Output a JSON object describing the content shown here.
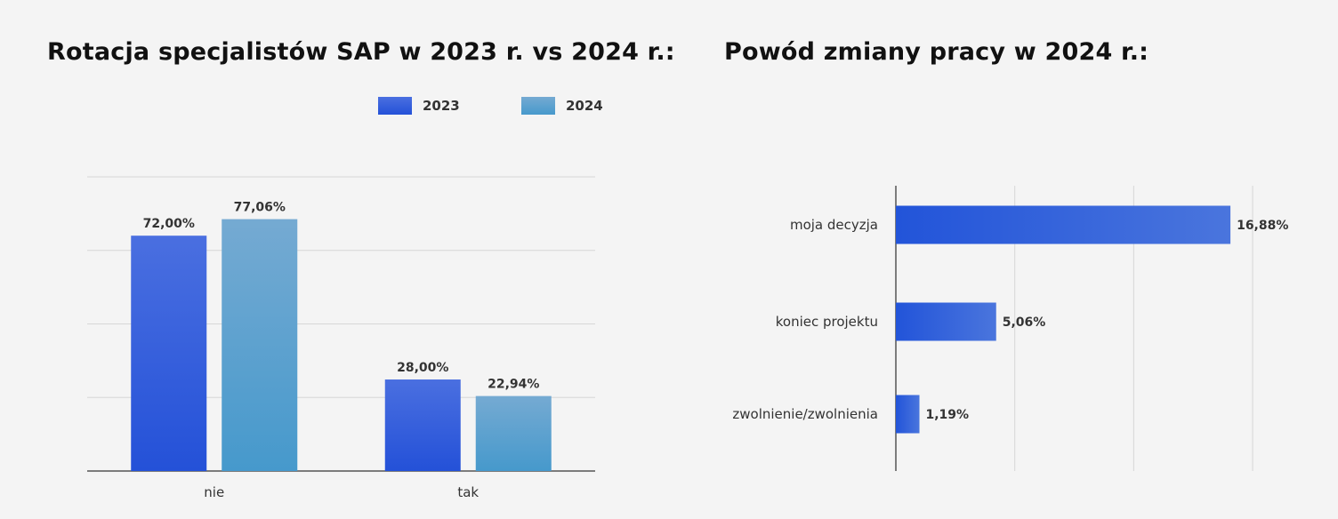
{
  "colors": {
    "series_2023_top": "#4a6fe0",
    "series_2023_bottom": "#2451d8",
    "series_2024_top": "#75aad2",
    "series_2024_bottom": "#4699cc",
    "hbar_left": "#2254d9",
    "hbar_right": "#4a75dd",
    "grid": "#d6d6d6",
    "axis": "#555555",
    "background": "#f4f4f4"
  },
  "chart_data": [
    {
      "type": "bar",
      "title": "Rotacja specjalistów SAP w 2023 r. vs 2024 r.:",
      "categories": [
        "nie",
        "tak"
      ],
      "series": [
        {
          "name": "2023",
          "values": [
            72.0,
            28.0
          ],
          "labels": [
            "72,00%",
            "28,00%"
          ]
        },
        {
          "name": "2024",
          "values": [
            77.06,
            22.94
          ],
          "labels": [
            "77,06%",
            "22,94%"
          ]
        }
      ],
      "ylim": [
        0,
        90
      ],
      "grid": true,
      "legend": "top-right"
    },
    {
      "type": "bar",
      "orientation": "horizontal",
      "title": "Powód zmiany pracy w 2024 r.:",
      "categories": [
        "moja decyzja",
        "koniec projektu",
        "zwolnienie/zwolnienia"
      ],
      "values": [
        16.88,
        5.06,
        1.19
      ],
      "labels": [
        "16,88%",
        "5,06%",
        "1,19%"
      ],
      "xlim": [
        0,
        18
      ],
      "grid": true
    }
  ]
}
